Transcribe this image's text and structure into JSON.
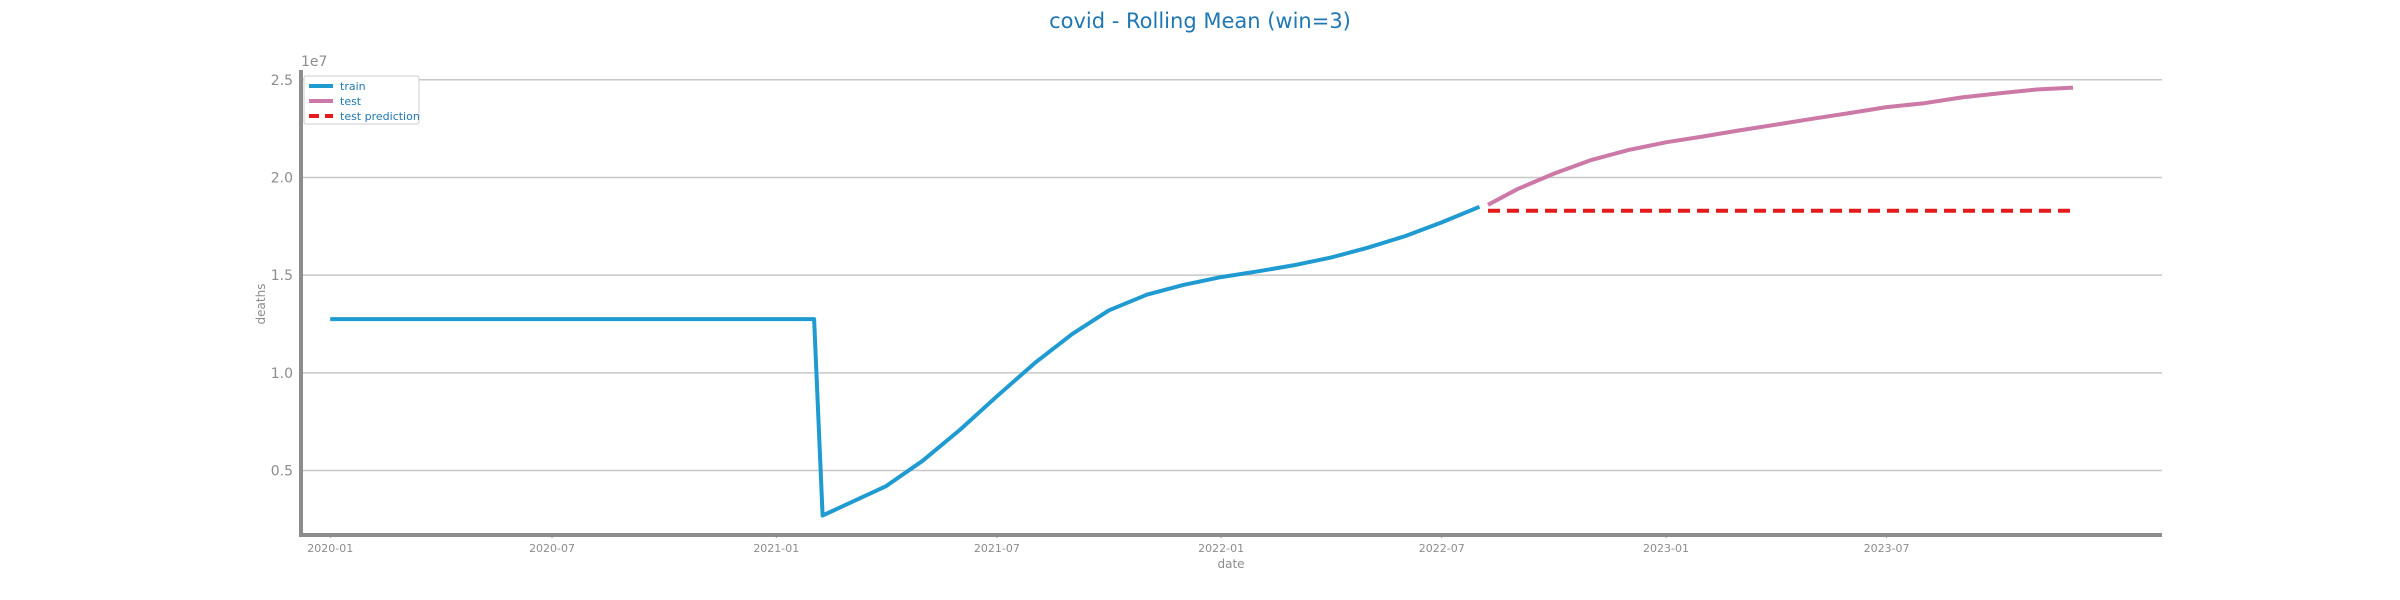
{
  "chart_data": {
    "type": "line",
    "title": "covid - Rolling Mean (win=3)",
    "xlabel": "date",
    "ylabel": "deaths",
    "y_offset_label": "1e7",
    "ylim": [
      0.17,
      2.55
    ],
    "y_ticks": [
      0.5,
      1.0,
      1.5,
      2.0,
      2.5
    ],
    "y_tick_labels": [
      "0.5",
      "1.0",
      "1.5",
      "2.0",
      "2.5"
    ],
    "xlim": [
      "2019-12-08",
      "2024-02-12"
    ],
    "x_ticks": [
      "2020-01-01",
      "2020-07-01",
      "2021-01-01",
      "2021-07-01",
      "2022-01-01",
      "2022-07-01",
      "2023-01-01",
      "2023-07-01"
    ],
    "x_tick_labels": [
      "2020-01",
      "2020-07",
      "2021-01",
      "2021-07",
      "2022-01",
      "2022-07",
      "2023-01",
      "2023-07"
    ],
    "grid": "horizontal",
    "legend_position": "top-left",
    "series": [
      {
        "name": "train",
        "color": "#1f9bd1",
        "style": "solid",
        "points": [
          [
            "2020-01-01",
            1.275
          ],
          [
            "2021-02-01",
            1.275
          ],
          [
            "2021-02-08",
            0.27
          ],
          [
            "2021-03-01",
            0.33
          ],
          [
            "2021-04-01",
            0.42
          ],
          [
            "2021-05-01",
            0.55
          ],
          [
            "2021-06-01",
            0.71
          ],
          [
            "2021-07-01",
            0.88
          ],
          [
            "2021-08-01",
            1.05
          ],
          [
            "2021-09-01",
            1.2
          ],
          [
            "2021-10-01",
            1.32
          ],
          [
            "2021-11-01",
            1.4
          ],
          [
            "2021-12-01",
            1.45
          ],
          [
            "2022-01-01",
            1.49
          ],
          [
            "2022-02-01",
            1.52
          ],
          [
            "2022-03-01",
            1.55
          ],
          [
            "2022-04-01",
            1.59
          ],
          [
            "2022-05-01",
            1.64
          ],
          [
            "2022-06-01",
            1.7
          ],
          [
            "2022-07-01",
            1.77
          ],
          [
            "2022-08-01",
            1.85
          ]
        ]
      },
      {
        "name": "test",
        "color": "#cc79a7",
        "style": "solid",
        "points": [
          [
            "2022-08-08",
            1.86
          ],
          [
            "2022-09-01",
            1.94
          ],
          [
            "2022-10-01",
            2.02
          ],
          [
            "2022-11-01",
            2.09
          ],
          [
            "2022-12-01",
            2.14
          ],
          [
            "2023-01-01",
            2.18
          ],
          [
            "2023-02-01",
            2.21
          ],
          [
            "2023-03-01",
            2.24
          ],
          [
            "2023-04-01",
            2.27
          ],
          [
            "2023-05-01",
            2.3
          ],
          [
            "2023-06-01",
            2.33
          ],
          [
            "2023-07-01",
            2.36
          ],
          [
            "2023-08-01",
            2.38
          ],
          [
            "2023-09-01",
            2.41
          ],
          [
            "2023-10-01",
            2.43
          ],
          [
            "2023-11-01",
            2.45
          ],
          [
            "2023-12-01",
            2.46
          ]
        ]
      },
      {
        "name": "test prediction",
        "color": "#e41a1c",
        "style": "dashed",
        "points": [
          [
            "2022-08-08",
            1.83
          ],
          [
            "2023-12-01",
            1.83
          ]
        ]
      }
    ]
  }
}
